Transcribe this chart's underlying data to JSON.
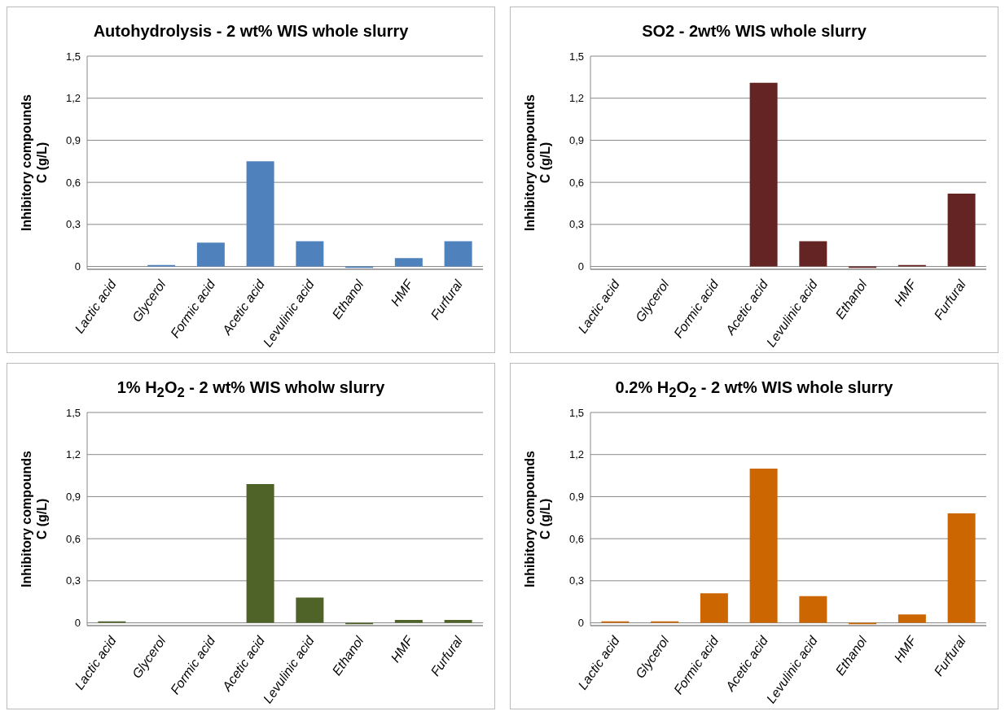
{
  "chart_data": [
    {
      "type": "bar",
      "title": "Autohydrolysis - 2 wt% WIS whole slurry",
      "ylabel": "Inhibitory compounds\nC (g/L)",
      "categories": [
        "Lactic acid",
        "Glycerol",
        "Formic acid",
        "Acetic acid",
        "Levulinic acid",
        "Ethanol",
        "HMF",
        "Furfural"
      ],
      "values": [
        0,
        0.01,
        0.17,
        0.75,
        0.18,
        -0.01,
        0.06,
        0.18
      ],
      "color": "#4f81bd",
      "ylim": [
        -0.02,
        1.5
      ],
      "yticks": [
        {
          "value": 0,
          "label": "0"
        },
        {
          "value": 0.3,
          "label": "0,3"
        },
        {
          "value": 0.6,
          "label": "0,6"
        },
        {
          "value": 0.9,
          "label": "0,9"
        },
        {
          "value": 1.2,
          "label": "1,2"
        },
        {
          "value": 1.5,
          "label": "1,5"
        }
      ],
      "grid": "y"
    },
    {
      "type": "bar",
      "title": "SO2 - 2wt% WIS whole slurry",
      "ylabel": "Inhibitory compounds\nC (g/L)",
      "categories": [
        "Lactic acid",
        "Glycerol",
        "Formic acid",
        "Acetic acid",
        "Levulinic acid",
        "Ethanol",
        "HMF",
        "Furfural"
      ],
      "values": [
        0,
        0,
        0,
        1.31,
        0.18,
        -0.01,
        0.01,
        0.52
      ],
      "color": "#632423",
      "ylim": [
        -0.02,
        1.5
      ],
      "yticks": [
        {
          "value": 0,
          "label": "0"
        },
        {
          "value": 0.3,
          "label": "0,3"
        },
        {
          "value": 0.6,
          "label": "0,6"
        },
        {
          "value": 0.9,
          "label": "0,9"
        },
        {
          "value": 1.2,
          "label": "1,2"
        },
        {
          "value": 1.5,
          "label": "1,5"
        }
      ],
      "grid": "y"
    },
    {
      "type": "bar",
      "title": "1% H$_{2}$O$_{2}$ - 2 wt% WIS wholw slurry",
      "ylabel": "Inhibitory compounds\nC (g/L)",
      "categories": [
        "Lactic acid",
        "Glycerol",
        "Formic acid",
        "Acetic acid",
        "Levulinic acid",
        "Ethanol",
        "HMF",
        "Furfural"
      ],
      "values": [
        0.01,
        0,
        0,
        0.99,
        0.18,
        -0.01,
        0.02,
        0.02
      ],
      "color": "#4f6228",
      "ylim": [
        -0.02,
        1.5
      ],
      "yticks": [
        {
          "value": 0,
          "label": "0"
        },
        {
          "value": 0.3,
          "label": "0,3"
        },
        {
          "value": 0.6,
          "label": "0,6"
        },
        {
          "value": 0.9,
          "label": "0,9"
        },
        {
          "value": 1.2,
          "label": "1,2"
        },
        {
          "value": 1.5,
          "label": "1,5"
        }
      ],
      "grid": "y"
    },
    {
      "type": "bar",
      "title": "0.2% H$_{2}$O$_{2}$ - 2 wt% WIS whole slurry",
      "ylabel": "Inhibitory compounds\nC (g/L)",
      "categories": [
        "Lactic acid",
        "Glycerol",
        "Formic acid",
        "Acetic acid",
        "Levulinic acid",
        "Ethanol",
        "HMF",
        "Furfural"
      ],
      "values": [
        0.01,
        0.01,
        0.21,
        1.1,
        0.19,
        -0.01,
        0.06,
        0.78
      ],
      "color": "#cc6600",
      "ylim": [
        -0.02,
        1.5
      ],
      "yticks": [
        {
          "value": 0,
          "label": "0"
        },
        {
          "value": 0.3,
          "label": "0,3"
        },
        {
          "value": 0.6,
          "label": "0,6"
        },
        {
          "value": 0.9,
          "label": "0,9"
        },
        {
          "value": 1.2,
          "label": "1,2"
        },
        {
          "value": 1.5,
          "label": "1,5"
        }
      ],
      "grid": "y"
    }
  ]
}
